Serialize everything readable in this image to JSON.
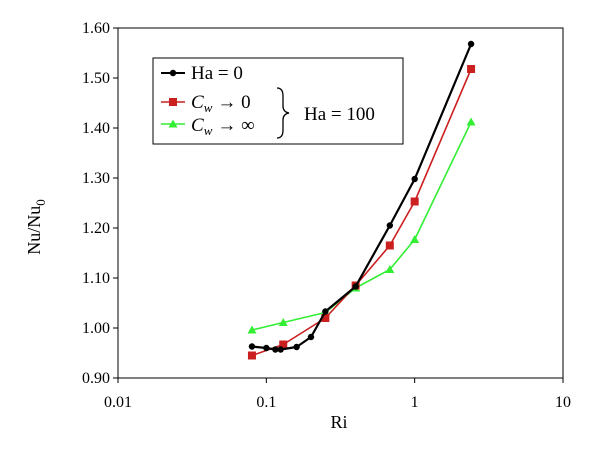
{
  "chart_data": {
    "type": "line",
    "xscale": "log",
    "xlim": [
      0.01,
      10
    ],
    "ylim": [
      0.9,
      1.6
    ],
    "xticks": [
      "0.01",
      "0.1",
      "1",
      "10"
    ],
    "yticks": [
      "0.90",
      "1.00",
      "1.10",
      "1.20",
      "1.30",
      "1.40",
      "1.50",
      "1.60"
    ],
    "xlabel": "Ri",
    "ylabel": "Nu/Nu",
    "ylabel_sub": "0",
    "legend": {
      "placement": "top-left",
      "group_label": "Ha = 100"
    },
    "series": [
      {
        "name": "Ha = 0",
        "color": "#000000",
        "marker": "circle",
        "x": [
          0.08,
          0.1,
          0.115,
          0.125,
          0.16,
          0.2,
          0.25,
          0.4,
          0.68,
          1.0,
          2.4
        ],
        "y": [
          0.963,
          0.96,
          0.957,
          0.957,
          0.962,
          0.982,
          1.033,
          1.083,
          1.205,
          1.298,
          1.568
        ]
      },
      {
        "name": "C",
        "name_sub": "w",
        "name_suffix": "→ 0",
        "color": "#cc1f1f",
        "marker": "square",
        "x": [
          0.08,
          0.13,
          0.25,
          0.4,
          0.68,
          1.0,
          2.4
        ],
        "y": [
          0.945,
          0.967,
          1.02,
          1.085,
          1.165,
          1.253,
          1.518
        ]
      },
      {
        "name": "C",
        "name_sub": "w",
        "name_suffix": "→ ∞",
        "color": "#33ee33",
        "marker": "triangle",
        "x": [
          0.08,
          0.13,
          0.25,
          0.4,
          0.68,
          1.0,
          2.4
        ],
        "y": [
          0.996,
          1.011,
          1.031,
          1.08,
          1.117,
          1.177,
          1.412
        ]
      }
    ]
  }
}
